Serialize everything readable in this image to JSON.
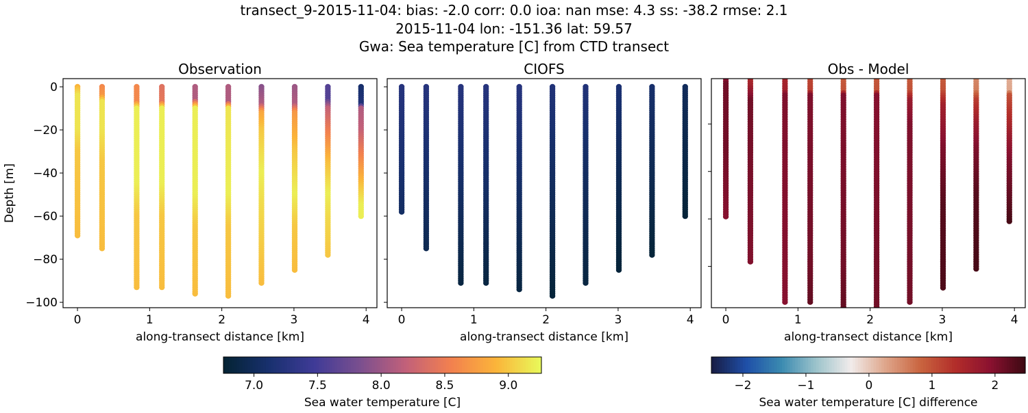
{
  "chart_data": {
    "title_lines": [
      "transect_9-2015-11-04: bias: -2.0  corr: 0.0  ioa: nan  mse: 4.3  ss: -38.2  rmse: 2.1",
      "2015-11-04 lon: -151.36 lat: 59.57",
      "Gwa: Sea temperature [C] from CTD transect"
    ],
    "stations_km": [
      0,
      0.34,
      0.82,
      1.17,
      1.63,
      2.09,
      2.55,
      3.01,
      3.47,
      3.93
    ],
    "panels": [
      {
        "type": "scatter",
        "title": "Observation",
        "xlabel": "along-transect distance [km]",
        "ylabel": "Depth [m]",
        "xlim": [
          -0.2,
          4.15
        ],
        "ylim": [
          -102.5,
          3.8
        ],
        "xticks": [
          0,
          1,
          2,
          3,
          4
        ],
        "yticks": [
          0,
          -20,
          -40,
          -60,
          -80,
          -100
        ],
        "show_ytick_labels": true,
        "colormap": "thermal",
        "profiles": [
          [
            [
              0,
              8.9
            ],
            [
              4,
              9.15
            ],
            [
              20,
              9.15
            ],
            [
              30,
              9.0
            ],
            [
              69,
              8.95
            ]
          ],
          [
            [
              0,
              8.6
            ],
            [
              4,
              8.7
            ],
            [
              7,
              9.15
            ],
            [
              20,
              9.15
            ],
            [
              35,
              9.0
            ],
            [
              75,
              8.95
            ]
          ],
          [
            [
              0,
              8.6
            ],
            [
              7,
              8.6
            ],
            [
              10,
              9.2
            ],
            [
              45,
              9.2
            ],
            [
              60,
              9.0
            ],
            [
              93,
              8.95
            ]
          ],
          [
            [
              0,
              8.4
            ],
            [
              7,
              8.45
            ],
            [
              10,
              9.2
            ],
            [
              45,
              9.2
            ],
            [
              60,
              9.0
            ],
            [
              93,
              8.95
            ]
          ],
          [
            [
              0,
              8.1
            ],
            [
              6,
              8.1
            ],
            [
              10,
              9.2
            ],
            [
              50,
              9.2
            ],
            [
              65,
              9.0
            ],
            [
              96,
              8.95
            ]
          ],
          [
            [
              0,
              8.1
            ],
            [
              7,
              8.1
            ],
            [
              10,
              9.15
            ],
            [
              50,
              9.2
            ],
            [
              65,
              9.0
            ],
            [
              97,
              8.95
            ]
          ],
          [
            [
              0,
              7.9
            ],
            [
              8,
              8.1
            ],
            [
              12,
              8.8
            ],
            [
              20,
              9.0
            ],
            [
              40,
              9.2
            ],
            [
              55,
              9.1
            ],
            [
              91,
              8.95
            ]
          ],
          [
            [
              0,
              8.0
            ],
            [
              8,
              8.1
            ],
            [
              12,
              8.7
            ],
            [
              30,
              9.0
            ],
            [
              50,
              9.2
            ],
            [
              65,
              9.0
            ],
            [
              85,
              8.95
            ]
          ],
          [
            [
              0,
              7.6
            ],
            [
              6,
              7.6
            ],
            [
              10,
              8.2
            ],
            [
              20,
              8.5
            ],
            [
              35,
              8.95
            ],
            [
              50,
              9.2
            ],
            [
              60,
              9.1
            ],
            [
              78,
              9.0
            ]
          ],
          [
            [
              0,
              7.1
            ],
            [
              8,
              7.2
            ],
            [
              10,
              8.1
            ],
            [
              20,
              8.2
            ],
            [
              30,
              8.5
            ],
            [
              45,
              8.95
            ],
            [
              55,
              9.2
            ],
            [
              60,
              9.2
            ]
          ]
        ]
      },
      {
        "type": "scatter",
        "title": "CIOFS",
        "xlabel": "along-transect distance [km]",
        "xlim": [
          -0.2,
          4.15
        ],
        "ylim": [
          -102.5,
          3.8
        ],
        "xticks": [
          0,
          1,
          2,
          3,
          4
        ],
        "yticks": [
          0,
          -20,
          -40,
          -60,
          -80,
          -100
        ],
        "show_ytick_labels": false,
        "colormap": "thermal",
        "profiles": [
          [
            [
              0,
              7.25
            ],
            [
              30,
              7.15
            ],
            [
              58,
              7.05
            ]
          ],
          [
            [
              0,
              7.25
            ],
            [
              40,
              7.1
            ],
            [
              75,
              6.95
            ]
          ],
          [
            [
              0,
              7.25
            ],
            [
              50,
              7.05
            ],
            [
              91,
              6.85
            ]
          ],
          [
            [
              0,
              7.25
            ],
            [
              50,
              7.05
            ],
            [
              91,
              6.85
            ]
          ],
          [
            [
              0,
              7.25
            ],
            [
              50,
              7.05
            ],
            [
              94,
              6.85
            ]
          ],
          [
            [
              0,
              7.2
            ],
            [
              50,
              7.0
            ],
            [
              97,
              6.8
            ]
          ],
          [
            [
              0,
              7.2
            ],
            [
              50,
              7.0
            ],
            [
              91,
              6.85
            ]
          ],
          [
            [
              0,
              7.15
            ],
            [
              45,
              6.95
            ],
            [
              85,
              6.8
            ]
          ],
          [
            [
              0,
              7.1
            ],
            [
              40,
              6.95
            ],
            [
              78,
              6.8
            ]
          ],
          [
            [
              0,
              7.0
            ],
            [
              30,
              6.9
            ],
            [
              60,
              6.8
            ]
          ]
        ]
      },
      {
        "type": "scatter",
        "title": "Obs - Model",
        "xlabel": "along-transect distance [km]",
        "xlim": [
          -0.2,
          4.15
        ],
        "ylim": [
          -97.4,
          -0.9
        ],
        "xticks": [
          0,
          1,
          2,
          3,
          4
        ],
        "yticks": [
          -20,
          -40,
          -60,
          -80
        ],
        "show_ytick_labels": false,
        "colormap": "balance",
        "profiles": [
          [
            [
              0,
              1.7
            ],
            [
              3,
              2.1
            ],
            [
              30,
              2.1
            ],
            [
              59,
              1.95
            ]
          ],
          [
            [
              0,
              1.4
            ],
            [
              4,
              1.6
            ],
            [
              10,
              2.1
            ],
            [
              78,
              2.0
            ]
          ],
          [
            [
              0,
              1.5
            ],
            [
              6,
              1.6
            ],
            [
              8,
              2.0
            ],
            [
              95,
              1.95
            ]
          ],
          [
            [
              0,
              1.1
            ],
            [
              6,
              1.2
            ],
            [
              8,
              2.0
            ],
            [
              80,
              2.1
            ],
            [
              95,
              2.2
            ]
          ],
          [
            [
              0,
              0.9
            ],
            [
              6,
              1.0
            ],
            [
              8,
              2.0
            ],
            [
              80,
              2.1
            ],
            [
              98,
              2.2
            ]
          ],
          [
            [
              0,
              0.95
            ],
            [
              6,
              1.0
            ],
            [
              8,
              1.95
            ],
            [
              100,
              2.1
            ]
          ],
          [
            [
              0,
              0.9
            ],
            [
              6,
              1.0
            ],
            [
              10,
              1.7
            ],
            [
              20,
              2.0
            ],
            [
              95,
              2.1
            ]
          ],
          [
            [
              0,
              0.9
            ],
            [
              6,
              1.0
            ],
            [
              12,
              1.6
            ],
            [
              30,
              2.0
            ],
            [
              55,
              2.3
            ],
            [
              89,
              2.35
            ]
          ],
          [
            [
              0,
              0.5
            ],
            [
              6,
              0.6
            ],
            [
              10,
              1.2
            ],
            [
              20,
              1.7
            ],
            [
              30,
              2.0
            ],
            [
              50,
              2.3
            ],
            [
              81,
              2.4
            ]
          ],
          [
            [
              0,
              0.2
            ],
            [
              6,
              0.25
            ],
            [
              8,
              1.0
            ],
            [
              15,
              1.3
            ],
            [
              25,
              1.7
            ],
            [
              35,
              2.0
            ],
            [
              50,
              2.2
            ],
            [
              61,
              2.4
            ]
          ]
        ]
      }
    ],
    "colorbars": [
      {
        "colormap": "thermal",
        "range": [
          6.76,
          9.26
        ],
        "ticks": [
          7.0,
          7.5,
          8.0,
          8.5,
          9.0
        ],
        "tick_labels": [
          "7.0",
          "7.5",
          "8.0",
          "8.5",
          "9.0"
        ],
        "label": "Sea water temperature [C]"
      },
      {
        "colormap": "balance",
        "range": [
          -2.5,
          2.48
        ],
        "ticks": [
          -2,
          -1,
          0,
          1,
          2
        ],
        "tick_labels": [
          "−2",
          "−1",
          "0",
          "1",
          "2"
        ],
        "label": "Sea water temperature [C] difference"
      }
    ],
    "colormaps": {
      "thermal": [
        "#042333",
        "#18306e",
        "#3f3b97",
        "#7a4f8f",
        "#c1607a",
        "#f2804f",
        "#fbb43a",
        "#e8fa5b"
      ],
      "balance": [
        "#181c43",
        "#1f4fa8",
        "#3a8ab0",
        "#9cc3cb",
        "#f1eceb",
        "#dea58a",
        "#c9643f",
        "#b22d2a",
        "#8a1130",
        "#3c0912"
      ]
    }
  }
}
